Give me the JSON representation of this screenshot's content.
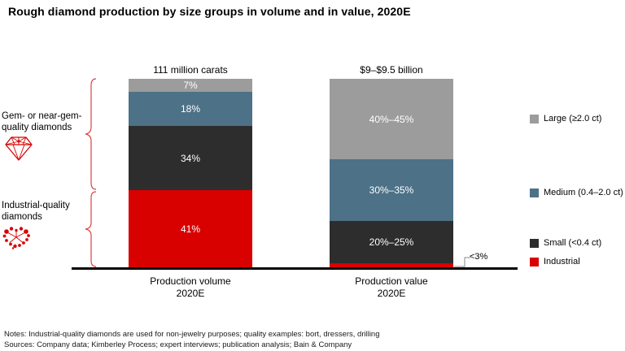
{
  "header": {
    "title": "Rough diamond production by size groups in volume and in value, 2020E"
  },
  "chart_data": {
    "type": "bar",
    "stacked": true,
    "title": "Rough diamond production by size groups in volume and in value, 2020E",
    "unit": "percent of total",
    "categories": [
      "Production volume 2020E",
      "Production value 2020E"
    ],
    "category_lines": [
      [
        "Production volume",
        "2020E"
      ],
      [
        "Production value",
        "2020E"
      ]
    ],
    "bar_totals": [
      "111 million carats",
      "$9–$9.5 billion"
    ],
    "series": [
      {
        "name": "Large (≥2.0 ct)",
        "color": "#9c9c9c",
        "labels": [
          "7%",
          "40%–45%"
        ],
        "values": [
          7,
          42.5
        ]
      },
      {
        "name": "Medium (0.4–2.0 ct)",
        "color": "#4d7187",
        "labels": [
          "18%",
          "30%–35%"
        ],
        "values": [
          18,
          32.5
        ]
      },
      {
        "name": "Small (<0.4 ct)",
        "color": "#2d2d2d",
        "labels": [
          "34%",
          "20%–25%"
        ],
        "values": [
          34,
          22.5
        ]
      },
      {
        "name": "Industrial",
        "color": "#d90000",
        "labels": [
          "41%",
          "<3%"
        ],
        "values": [
          41,
          2.5
        ]
      }
    ],
    "legend_position": "right",
    "group_labels": [
      {
        "lines": [
          "Gem- or near-gem-",
          "quality diamonds"
        ],
        "icon": "gem-diamond-icon"
      },
      {
        "lines": [
          "Industrial-quality",
          "diamonds"
        ],
        "icon": "industrial-diamonds-icon"
      }
    ],
    "callout_label": "<3%"
  },
  "footer": {
    "notes": "Notes: Industrial-quality diamonds are used for non-jewelry purposes; quality examples: bort, dressers, drilling",
    "sources": "Sources: Company data; Kimberley Process; expert interviews; publication analysis; Bain & Company"
  },
  "colors": {
    "accent_red": "#d90000",
    "brace_red": "#e04040",
    "baseline": "#000000",
    "callout_line": "#888888"
  }
}
